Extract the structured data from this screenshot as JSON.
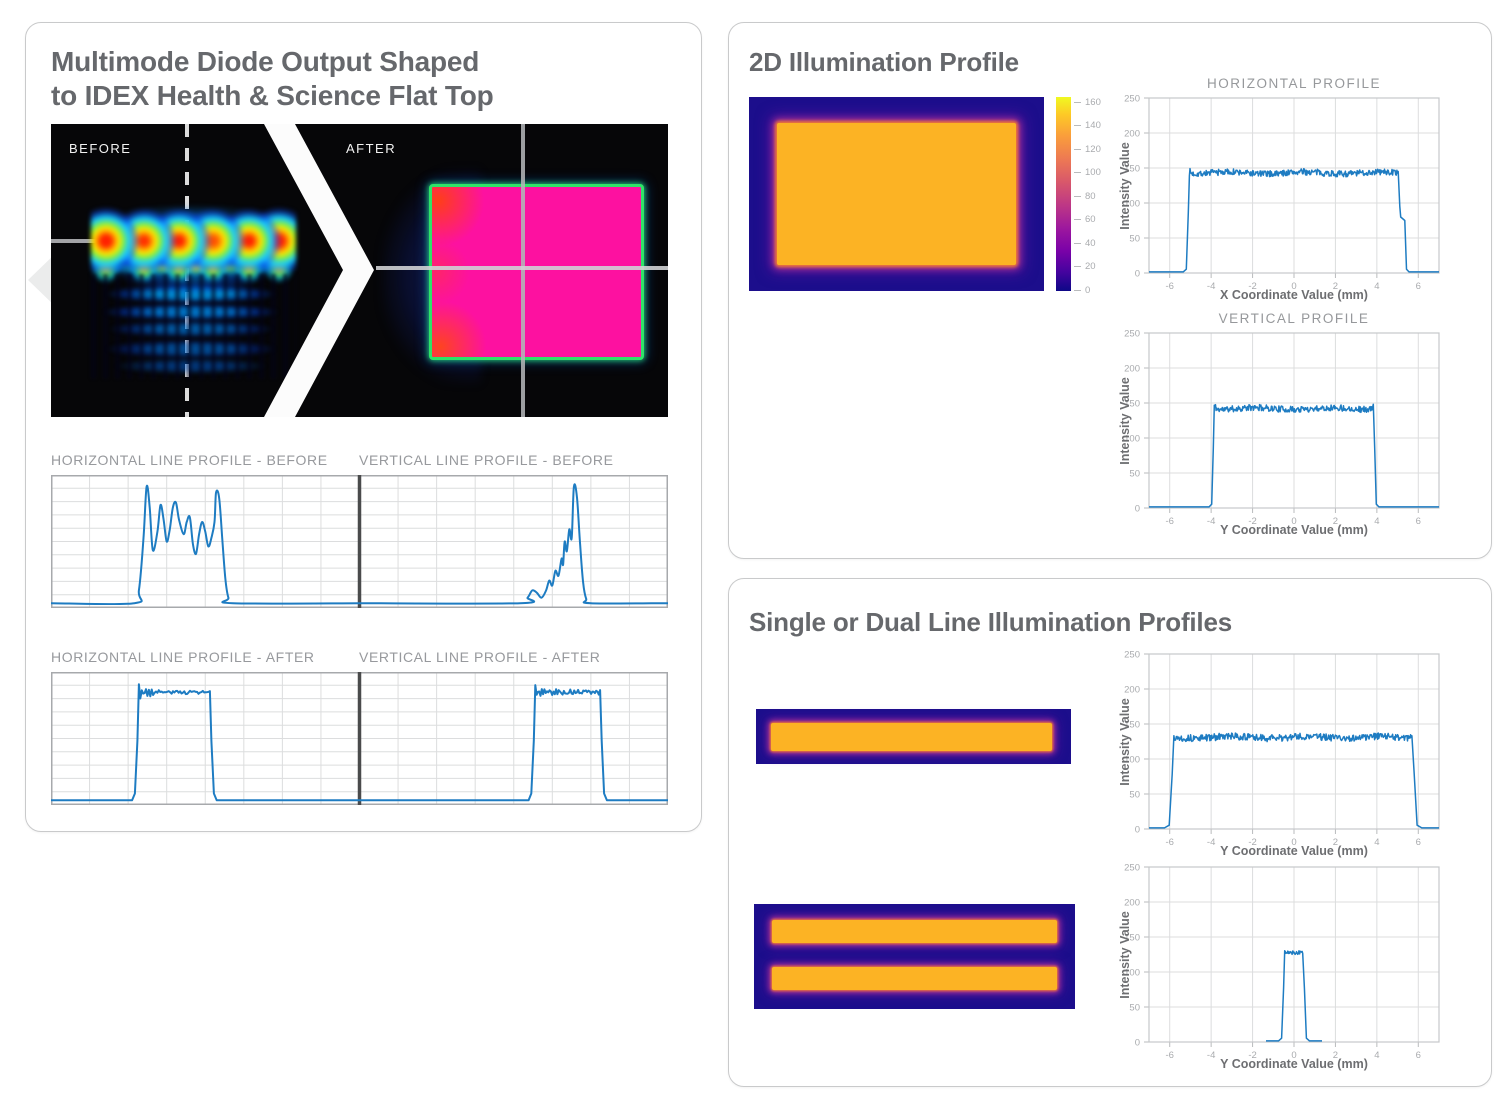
{
  "colors": {
    "accent_blue": "#1e7cc2",
    "panel_border": "#c9cacb",
    "title_gray": "#66686c",
    "chart_title_gray": "#96989b",
    "tick_gray": "#a9abae",
    "axis_label_gray": "#6d6e71",
    "grid_gray": "#dcddde",
    "chart_frame_gray": "#a7a9ac",
    "divider_dark": "#4a4b4c",
    "heatmap_navy": "#1c0e8c",
    "heatmap_amber": "#fcb324",
    "heatmap_glow_magenta": "#cd3c96",
    "beam_pink": "#fd11a0",
    "beam_green_border": "#2ee468"
  },
  "left_panel": {
    "title_line1": "Multimode Diode Output Shaped",
    "title_line2": "to IDEX Health & Science Flat Top",
    "before_label": "BEFORE",
    "after_label": "AFTER"
  },
  "top_right_panel": {
    "title": "2D Illumination Profile"
  },
  "bottom_right_panel": {
    "title": "Single or Dual Line Illumination Profiles"
  },
  "chart_data": [
    {
      "id": "left-before-horizontal",
      "type": "line",
      "title": "HORIZONTAL LINE PROFILE - BEFORE",
      "axes": "unlabeled grid, values normalized 0-1",
      "points": [
        [
          0,
          0.015
        ],
        [
          0.27,
          0.015
        ],
        [
          0.285,
          0.12
        ],
        [
          0.3,
          0.55
        ],
        [
          0.31,
          0.97
        ],
        [
          0.32,
          0.8
        ],
        [
          0.33,
          0.45
        ],
        [
          0.345,
          0.6
        ],
        [
          0.355,
          0.82
        ],
        [
          0.365,
          0.7
        ],
        [
          0.375,
          0.52
        ],
        [
          0.385,
          0.62
        ],
        [
          0.395,
          0.8
        ],
        [
          0.405,
          0.84
        ],
        [
          0.415,
          0.7
        ],
        [
          0.43,
          0.58
        ],
        [
          0.44,
          0.68
        ],
        [
          0.45,
          0.72
        ],
        [
          0.46,
          0.5
        ],
        [
          0.47,
          0.42
        ],
        [
          0.48,
          0.58
        ],
        [
          0.49,
          0.68
        ],
        [
          0.5,
          0.6
        ],
        [
          0.51,
          0.48
        ],
        [
          0.52,
          0.55
        ],
        [
          0.53,
          0.68
        ],
        [
          0.535,
          0.92
        ],
        [
          0.545,
          0.88
        ],
        [
          0.555,
          0.55
        ],
        [
          0.565,
          0.22
        ],
        [
          0.575,
          0.06
        ],
        [
          0.59,
          0.015
        ],
        [
          1,
          0.015
        ]
      ]
    },
    {
      "id": "left-before-vertical",
      "type": "line",
      "title": "VERTICAL LINE PROFILE - BEFORE",
      "axes": "unlabeled grid, values normalized 0-1",
      "points": [
        [
          0,
          0.015
        ],
        [
          0.52,
          0.015
        ],
        [
          0.545,
          0.06
        ],
        [
          0.56,
          0.12
        ],
        [
          0.575,
          0.1
        ],
        [
          0.59,
          0.06
        ],
        [
          0.605,
          0.12
        ],
        [
          0.615,
          0.2
        ],
        [
          0.625,
          0.16
        ],
        [
          0.635,
          0.28
        ],
        [
          0.645,
          0.24
        ],
        [
          0.655,
          0.38
        ],
        [
          0.66,
          0.33
        ],
        [
          0.665,
          0.52
        ],
        [
          0.672,
          0.44
        ],
        [
          0.68,
          0.62
        ],
        [
          0.688,
          0.55
        ],
        [
          0.695,
          0.97
        ],
        [
          0.705,
          0.88
        ],
        [
          0.715,
          0.5
        ],
        [
          0.725,
          0.18
        ],
        [
          0.735,
          0.05
        ],
        [
          0.75,
          0.015
        ],
        [
          1,
          0.015
        ]
      ]
    },
    {
      "id": "left-after-horizontal",
      "type": "line",
      "title": "HORIZONTAL LINE PROFILE - AFTER",
      "axes": "unlabeled grid, values normalized 0-1",
      "flat_top": {
        "start": 0.285,
        "end": 0.515,
        "level": 0.9,
        "noise": 0.015,
        "overshoot": 0.07
      },
      "seed": 3
    },
    {
      "id": "left-after-vertical",
      "type": "line",
      "title": "VERTICAL LINE PROFILE - AFTER",
      "axes": "unlabeled grid, values normalized 0-1",
      "flat_top": {
        "start": 0.57,
        "end": 0.78,
        "level": 0.9,
        "noise": 0.02,
        "overshoot": 0.06
      },
      "seed": 5
    },
    {
      "id": "2d-illumination-heatmap",
      "type": "heatmap",
      "description": "Uniform rectangular flat-top illumination on dark background",
      "background_value": 0,
      "plateau_value": 150,
      "colorbar_max": 165,
      "colorbar_ticks": [
        160,
        140,
        120,
        100,
        80,
        60,
        40,
        20,
        0
      ]
    },
    {
      "id": "2d-horizontal-profile",
      "dom_id": "chart-2d-h",
      "type": "line",
      "title": "HORIZONTAL PROFILE",
      "xlabel": "X Coordinate Value (mm)",
      "ylabel": "Intensity Value",
      "xlim": [
        -7,
        7
      ],
      "ylim": [
        0,
        250
      ],
      "xticks": [
        -6,
        -4,
        -2,
        0,
        2,
        4,
        6
      ],
      "yticks": [
        0,
        50,
        100,
        150,
        200,
        250
      ],
      "grid": true,
      "flat_top": {
        "start": -5.05,
        "end": 5.05,
        "level": 143,
        "noise": 4.5,
        "edge_spike": 5,
        "rise": 0.3
      },
      "right_step": {
        "level": 80,
        "to_x": 5.35
      },
      "seed": 7
    },
    {
      "id": "2d-vertical-profile",
      "dom_id": "chart-2d-v",
      "type": "line",
      "title": "VERTICAL PROFILE",
      "xlabel": "Y Coordinate Value (mm)",
      "ylabel": "Intensity Value",
      "xlim": [
        -7,
        7
      ],
      "ylim": [
        0,
        250
      ],
      "xticks": [
        -6,
        -4,
        -2,
        0,
        2,
        4,
        6
      ],
      "yticks": [
        0,
        50,
        100,
        150,
        200,
        250
      ],
      "grid": true,
      "flat_top": {
        "start": -3.85,
        "end": 3.85,
        "level": 142,
        "noise": 4.5,
        "edge_spike": 9,
        "rise": 0.25
      },
      "seed": 11
    },
    {
      "id": "single-line-profile",
      "dom_id": "chart-line-single",
      "type": "line",
      "title": "",
      "xlabel": "Y Coordinate Value (mm)",
      "ylabel": "Intensity Value",
      "xlim": [
        -7,
        7
      ],
      "ylim": [
        0,
        250
      ],
      "xticks": [
        -6,
        -4,
        -2,
        0,
        2,
        4,
        6
      ],
      "yticks": [
        0,
        50,
        100,
        150,
        200,
        250
      ],
      "grid": true,
      "flat_top": {
        "start": -5.8,
        "end": 5.72,
        "level": 131,
        "noise": 5,
        "edge_spike": 3,
        "rise": 0.45
      },
      "seed": 13
    },
    {
      "id": "dual-line-profile",
      "dom_id": "chart-line-dual",
      "type": "line",
      "title": "",
      "xlabel": "Y Coordinate Value (mm)",
      "ylabel": "Intensity Value",
      "xlim": [
        -7,
        7
      ],
      "ylim": [
        0,
        250
      ],
      "xticks": [
        -6,
        -4,
        -2,
        0,
        2,
        4,
        6
      ],
      "yticks": [
        0,
        50,
        100,
        150,
        200,
        250
      ],
      "grid": true,
      "flat_top": {
        "start": -0.45,
        "end": 0.45,
        "level": 129,
        "noise": 3,
        "edge_spike": 2,
        "rise": 0.3
      },
      "trace_range": [
        -1.35,
        1.35
      ],
      "seed": 17
    }
  ]
}
